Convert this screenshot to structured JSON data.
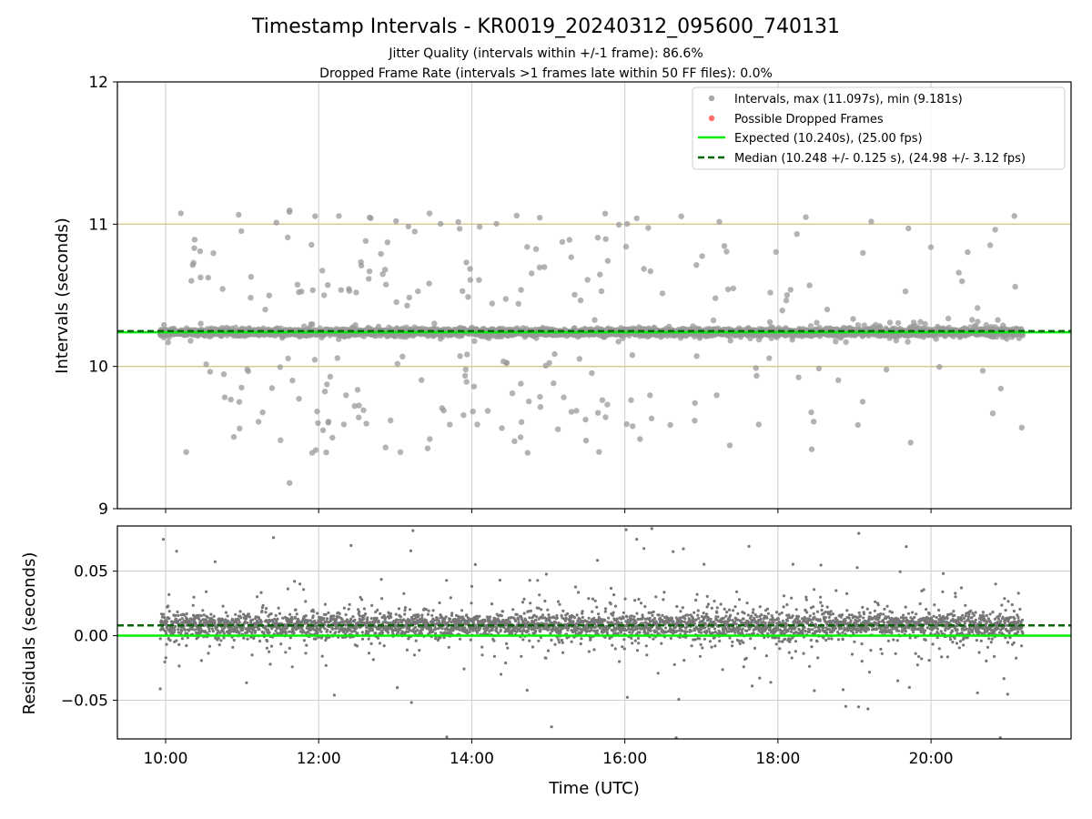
{
  "figure": {
    "title": "Timestamp Intervals - KR0019_20240312_095600_740131",
    "subtitle_1": "Jitter Quality (intervals within +/-1 frame): 86.6%",
    "subtitle_2": "Dropped Frame Rate (intervals >1 frames late within 50 FF files): 0.0%"
  },
  "colors": {
    "intervals": "#999999",
    "residuals": "#777777",
    "dropped": "#ff5555",
    "expected": "#00ee00",
    "median": "#006400",
    "threshold": "#d4c88a",
    "grid": "#cccccc"
  },
  "chart_data": [
    {
      "type": "scatter",
      "panel": "intervals",
      "ylabel": "Intervals (seconds)",
      "ylim": [
        9,
        12
      ],
      "yticks": [
        "9",
        "10",
        "11",
        "12"
      ],
      "xlim_hours": [
        9.37,
        21.83
      ],
      "xticks": [
        10,
        12,
        14,
        16,
        18,
        20
      ],
      "grid": "vertical",
      "legend_placement": "upper-right",
      "legend": [
        "Intervals, max (11.097s), min (9.181s)",
        "Possible Dropped Frames",
        "Expected (10.240s), (25.00 fps)",
        "Median (10.248 +/- 0.125 s), (24.98 +/- 3.12 fps)"
      ],
      "expected": 10.24,
      "median": 10.248,
      "frame_bounds": [
        10.0,
        11.0
      ],
      "max": 11.097,
      "min": 9.181,
      "x_start_hours": 9.93,
      "x_end_hours": 21.2,
      "approx_point_count": 3960,
      "series": [
        {
          "name": "Intervals",
          "marker": "circle"
        },
        {
          "name": "Possible Dropped Frames",
          "marker": "circle",
          "values": []
        }
      ]
    },
    {
      "type": "scatter",
      "panel": "residuals",
      "xlabel": "Time (UTC)",
      "ylabel": "Residuals (seconds)",
      "ylim": [
        -0.08,
        0.085
      ],
      "yticks": [
        {
          "value": 0.05,
          "label": "0.05"
        },
        {
          "value": 0.0,
          "label": "0.00"
        },
        {
          "value": -0.05,
          "label": "−0.05"
        }
      ],
      "xlim_hours": [
        9.37,
        21.83
      ],
      "xticks": [
        {
          "value": 10,
          "label": "10:00"
        },
        {
          "value": 12,
          "label": "12:00"
        },
        {
          "value": 14,
          "label": "14:00"
        },
        {
          "value": 16,
          "label": "16:00"
        },
        {
          "value": 18,
          "label": "18:00"
        },
        {
          "value": 20,
          "label": "20:00"
        }
      ],
      "grid": "both",
      "zero_line": 0.0,
      "median_residual": 0.008,
      "series": [
        {
          "name": "Residuals",
          "marker": "dot"
        }
      ]
    }
  ]
}
